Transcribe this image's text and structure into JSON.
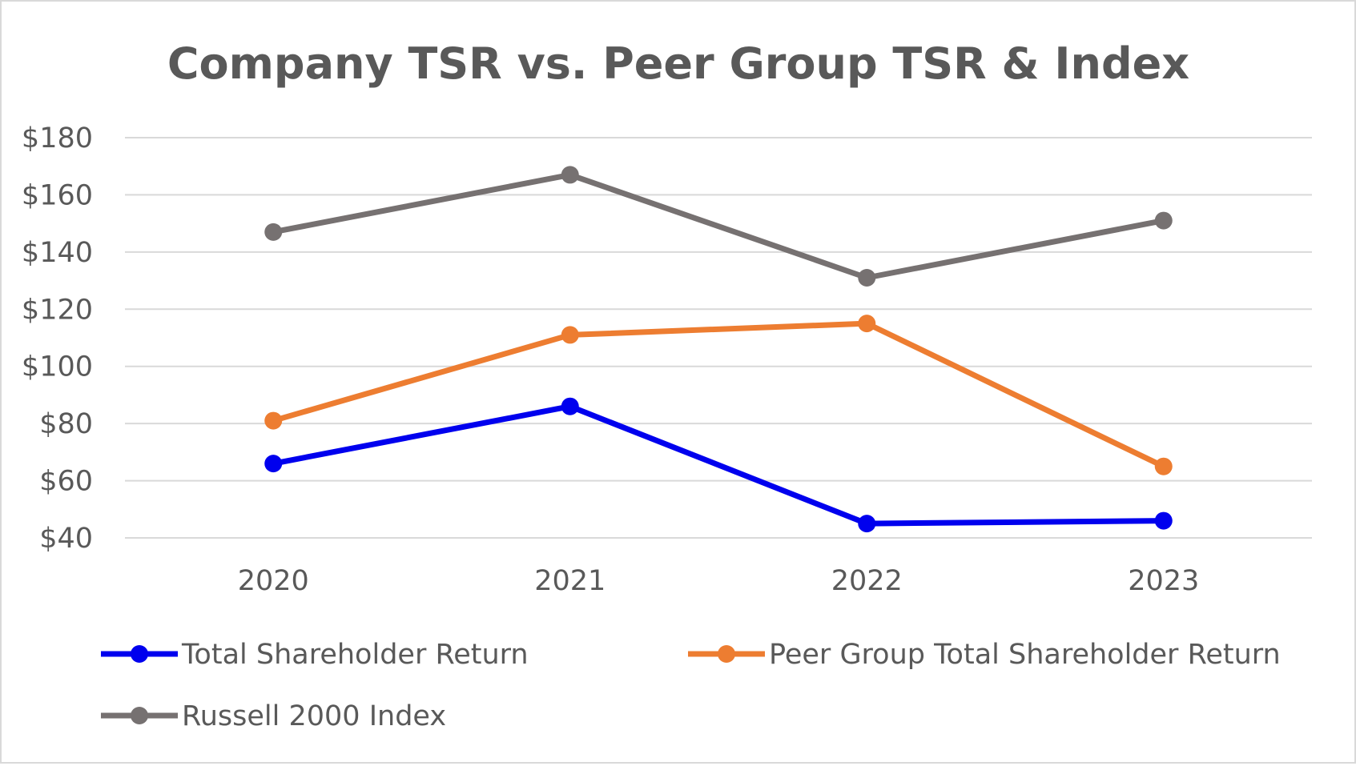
{
  "chart_data": {
    "type": "line",
    "title": "Company TSR vs. Peer Group TSR & Index",
    "xlabel": "",
    "ylabel": "",
    "x": [
      "2020",
      "2021",
      "2022",
      "2023"
    ],
    "ylim": [
      40,
      180
    ],
    "yticks": [
      40,
      60,
      80,
      100,
      120,
      140,
      160,
      180
    ],
    "ytick_labels": [
      "$40",
      "$60",
      "$80",
      "$100",
      "$120",
      "$140",
      "$160",
      "$180"
    ],
    "grid": true,
    "legend_position": "bottom",
    "series": [
      {
        "name": "Total Shareholder Return",
        "color": "#0000ee",
        "values": [
          66,
          86,
          45,
          46
        ]
      },
      {
        "name": "Peer Group Total Shareholder Return",
        "color": "#ed7d31",
        "values": [
          81,
          111,
          115,
          65
        ]
      },
      {
        "name": "Russell 2000 Index",
        "color": "#767171",
        "values": [
          147,
          167,
          131,
          151
        ]
      }
    ]
  }
}
